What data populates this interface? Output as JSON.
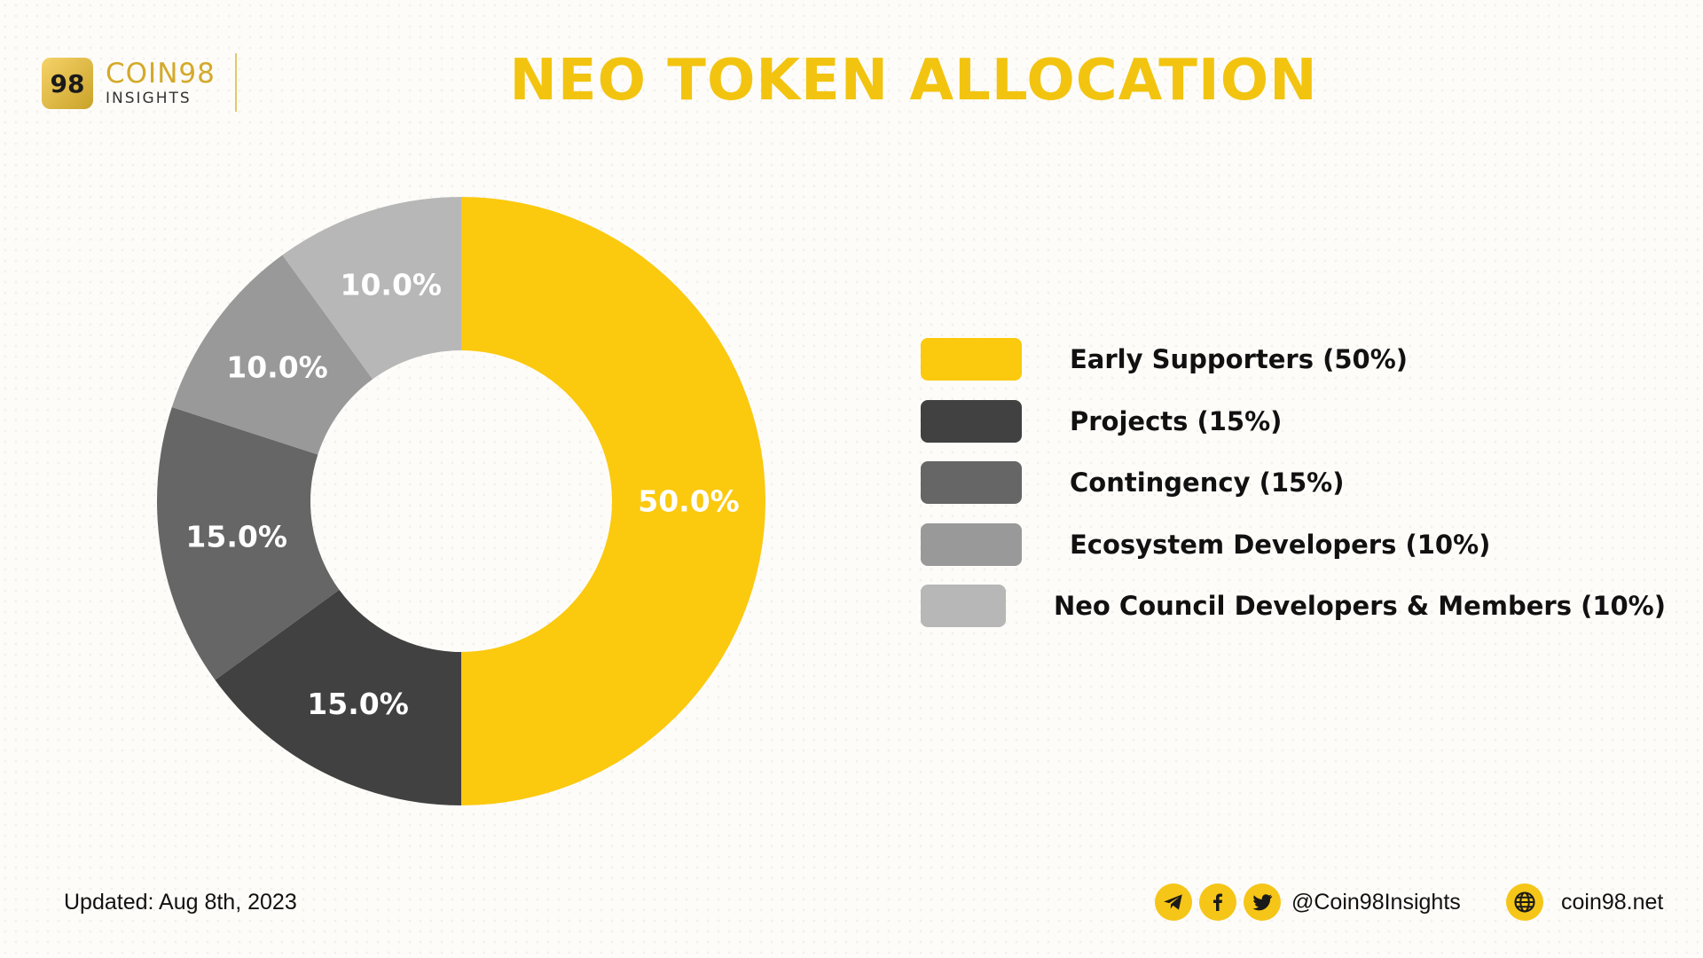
{
  "header": {
    "brand": "COIN98",
    "brand_sub": "INSIGHTS",
    "logo_mark": "98",
    "title": "NEO TOKEN ALLOCATION"
  },
  "chart_data": {
    "type": "pie",
    "donut": true,
    "title": "NEO TOKEN ALLOCATION",
    "slices": [
      {
        "legend": "Early Supporters (50%)",
        "value": 50.0,
        "label": "50.0%",
        "color": "#fbc90e"
      },
      {
        "legend": "Projects (15%)",
        "value": 15.0,
        "label": "15.0%",
        "color": "#414141"
      },
      {
        "legend": "Contingency (15%)",
        "value": 15.0,
        "label": "15.0%",
        "color": "#666666"
      },
      {
        "legend": "Ecosystem Developers (10%)",
        "value": 10.0,
        "label": "10.0%",
        "color": "#999999"
      },
      {
        "legend": "Neo Council Developers & Members (10%)",
        "value": 10.0,
        "label": "10.0%",
        "color": "#b7b7b7"
      }
    ],
    "legend_position": "right"
  },
  "footer": {
    "updated": "Updated: Aug 8th, 2023",
    "social_handle": "@Coin98Insights",
    "website": "coin98.net",
    "icons": [
      "telegram-icon",
      "facebook-icon",
      "twitter-icon",
      "globe-icon"
    ],
    "accent": "#f5c518"
  }
}
